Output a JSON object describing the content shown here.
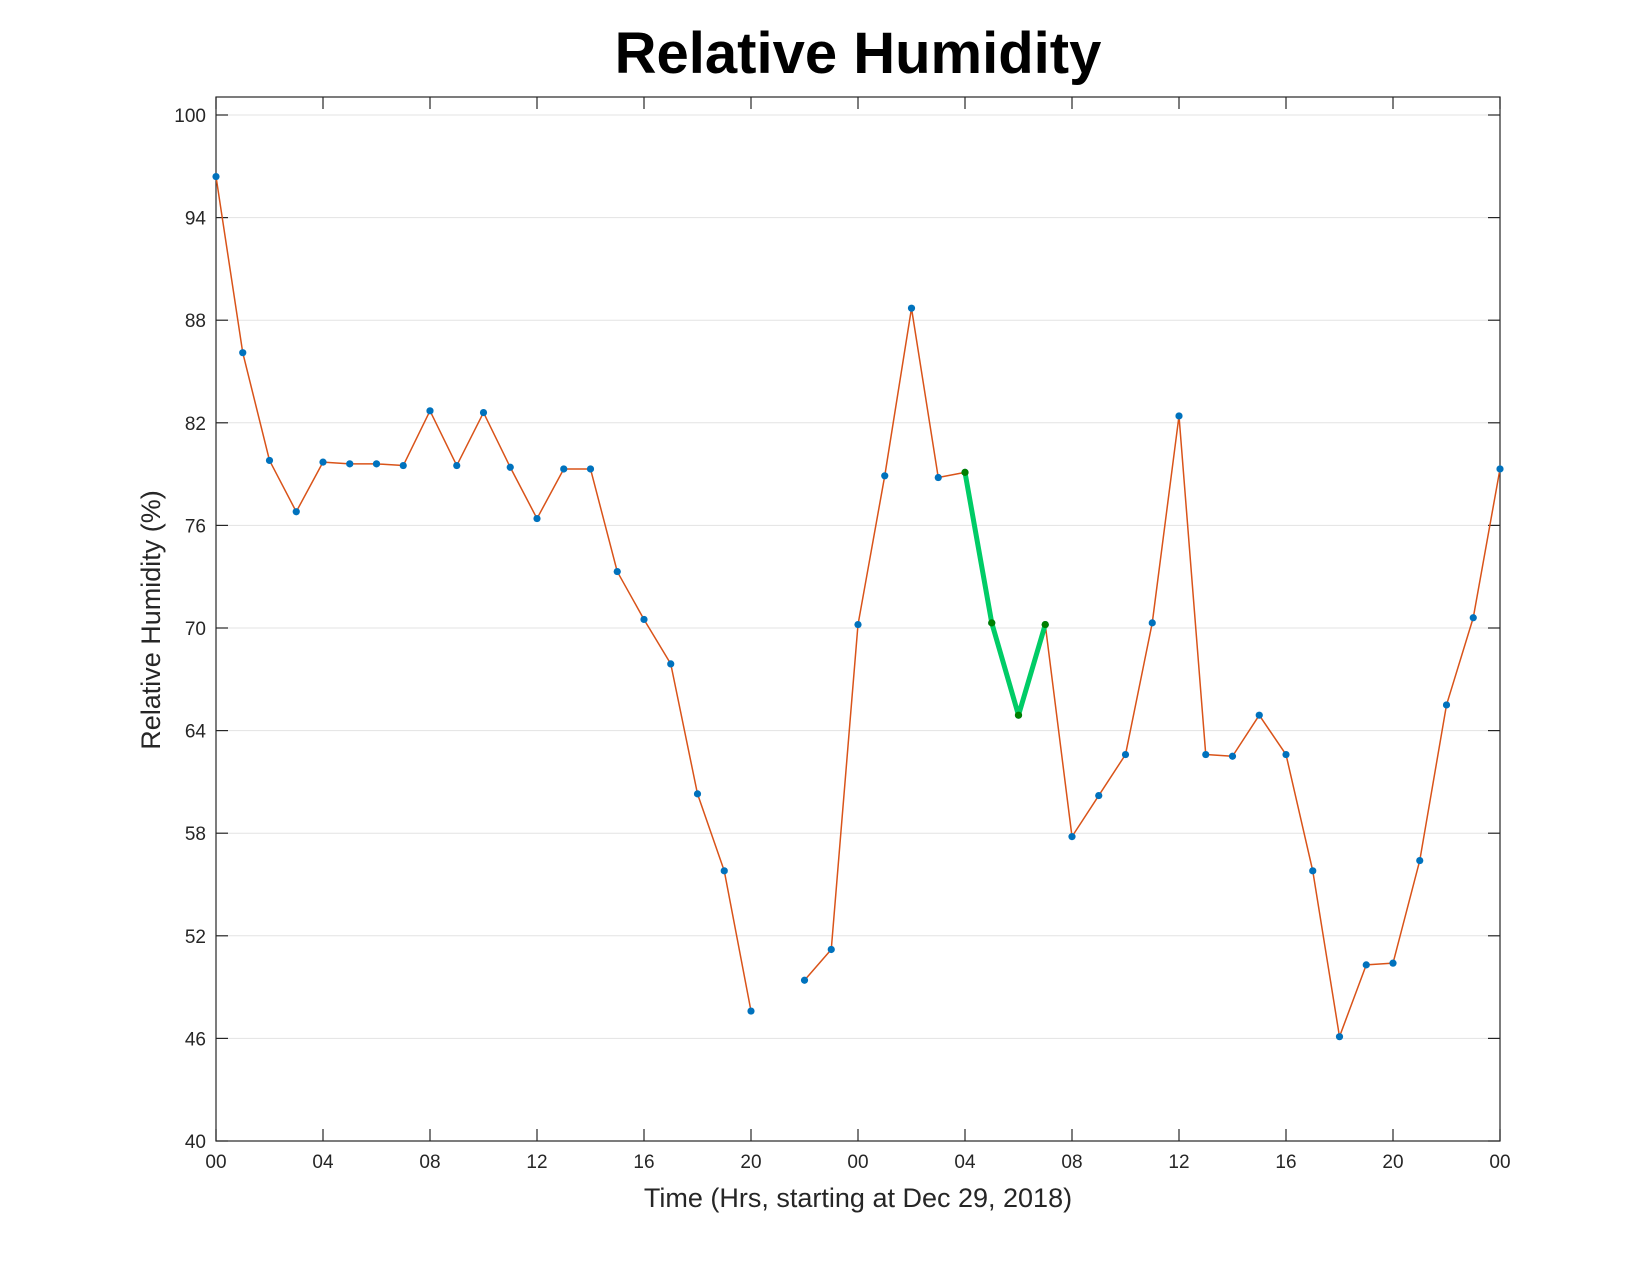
{
  "chart_data": {
    "type": "line",
    "title": "Relative Humidity",
    "xlabel": "Time (Hrs, starting at Dec 29, 2018)",
    "ylabel": "Relative Humidity (%)",
    "ylim": [
      40,
      100
    ],
    "xlim": [
      0,
      48
    ],
    "yticks": [
      40,
      46,
      52,
      58,
      64,
      70,
      76,
      82,
      88,
      94,
      100
    ],
    "xticks": [
      0,
      4,
      8,
      12,
      16,
      20,
      24,
      28,
      32,
      36,
      40,
      44,
      48
    ],
    "xtick_labels": [
      "00",
      "04",
      "08",
      "12",
      "16",
      "20",
      "00",
      "04",
      "08",
      "12",
      "16",
      "20",
      "00"
    ],
    "grid": "horizontal",
    "series": [
      {
        "color": "#d95319",
        "marker_color": "#0072bd",
        "x": [
          0,
          1,
          2,
          3,
          4,
          5,
          6,
          7,
          8,
          9,
          10,
          11,
          12,
          13,
          14,
          15,
          16,
          17,
          18,
          19,
          20,
          21,
          22,
          23,
          24,
          25,
          26,
          27,
          28,
          29,
          30,
          31,
          32,
          33,
          34,
          35,
          36,
          37,
          38,
          39,
          40,
          41,
          42,
          43,
          44,
          45,
          46,
          47,
          48
        ],
        "y": [
          96.4,
          86.1,
          79.8,
          76.8,
          79.7,
          79.6,
          79.6,
          79.5,
          82.7,
          79.5,
          82.6,
          79.4,
          76.4,
          79.3,
          79.3,
          73.3,
          70.5,
          67.9,
          60.3,
          55.8,
          47.6,
          null,
          49.4,
          51.2,
          70.2,
          78.9,
          88.7,
          78.8,
          79.1,
          70.3,
          64.9,
          70.2,
          57.8,
          60.2,
          62.6,
          70.3,
          82.4,
          62.6,
          62.5,
          64.9,
          62.6,
          55.8,
          46.1,
          50.3,
          50.4,
          56.4,
          65.5,
          70.6,
          79.3
        ]
      },
      {
        "color": "#00cc66",
        "marker_color": "#008000",
        "x": [
          28,
          29,
          30,
          31
        ],
        "y": [
          79.1,
          70.3,
          64.9,
          70.2
        ]
      }
    ]
  }
}
